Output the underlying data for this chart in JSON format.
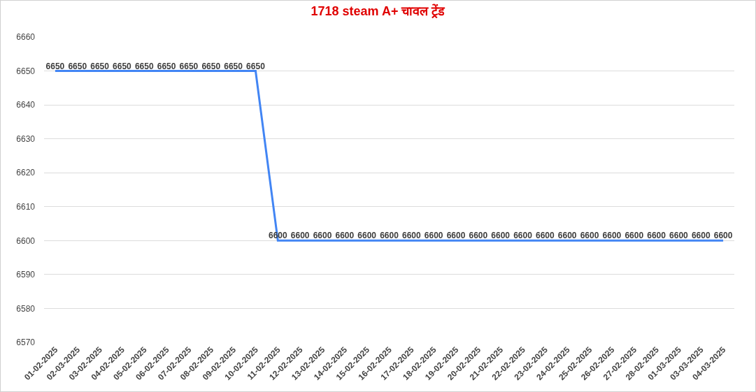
{
  "chart_data": {
    "type": "line",
    "title": "1718 steam A+ चावल ट्रेंड",
    "categories": [
      "01-02-2025",
      "02-03-2025",
      "03-02-2025",
      "04-02-2025",
      "05-02-2025",
      "06-02-2025",
      "07-02-2025",
      "08-02-2025",
      "09-02-2025",
      "10-02-2025",
      "11-02-2025",
      "12-02-2025",
      "13-02-2025",
      "14-02-2025",
      "15-02-2025",
      "16-02-2025",
      "17-02-2025",
      "18-02-2025",
      "19-02-2025",
      "20-02-2025",
      "21-02-2025",
      "22-02-2025",
      "23-02-2025",
      "24-02-2025",
      "25-02-2025",
      "26-02-2025",
      "27-02-2025",
      "28-02-2025",
      "01-03-2025",
      "03-03-2025",
      "04-03-2025"
    ],
    "series": [
      {
        "color": "#4285f4",
        "values": [
          6650,
          6650,
          6650,
          6650,
          6650,
          6650,
          6650,
          6650,
          6650,
          6650,
          6600,
          6600,
          6600,
          6600,
          6600,
          6600,
          6600,
          6600,
          6600,
          6600,
          6600,
          6600,
          6600,
          6600,
          6600,
          6600,
          6600,
          6600,
          6600,
          6600,
          6600
        ]
      }
    ],
    "ylim": [
      6570,
      6660
    ],
    "yticks": [
      6570,
      6580,
      6590,
      6600,
      6610,
      6620,
      6630,
      6640,
      6650,
      6660
    ],
    "grid": "y",
    "marker": "none",
    "line_style": "solid",
    "data_labels": true
  }
}
